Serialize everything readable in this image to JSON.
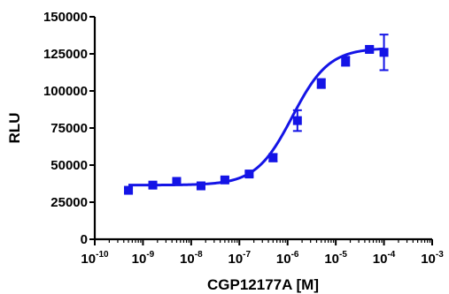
{
  "chart_data": {
    "type": "scatter",
    "xlabel": "CGP12177A [M]",
    "ylabel": "RLU",
    "x_scale": "log10",
    "xlim": [
      1e-10,
      0.001
    ],
    "ylim": [
      0,
      150000
    ],
    "x_ticks": [
      {
        "base": "10",
        "exp": "-10"
      },
      {
        "base": "10",
        "exp": "-9"
      },
      {
        "base": "10",
        "exp": "-8"
      },
      {
        "base": "10",
        "exp": "-7"
      },
      {
        "base": "10",
        "exp": "-6"
      },
      {
        "base": "10",
        "exp": "-5"
      },
      {
        "base": "10",
        "exp": "-4"
      },
      {
        "base": "10",
        "exp": "-3"
      }
    ],
    "y_ticks": [
      "0",
      "25000",
      "50000",
      "75000",
      "100000",
      "125000",
      "150000"
    ],
    "grid": false,
    "color": "#1414e6",
    "series": [
      {
        "x": [
          5e-10,
          1.6e-09,
          5e-09,
          1.6e-08,
          5e-08,
          1.6e-07,
          5e-07,
          1.6e-06,
          5e-06,
          1.6e-05,
          5e-05,
          0.0001
        ],
        "y": [
          33000,
          36500,
          39000,
          36000,
          40000,
          44000,
          55000,
          80000,
          105000,
          120000,
          128000,
          126000
        ],
        "err": [
          1500,
          1500,
          1500,
          1500,
          1500,
          1500,
          2500,
          7000,
          3000,
          3000,
          2000,
          12000
        ],
        "fit": {
          "bottom": 36500,
          "top": 129000,
          "log_ec50": -5.9,
          "hill": 1.15
        }
      }
    ]
  }
}
